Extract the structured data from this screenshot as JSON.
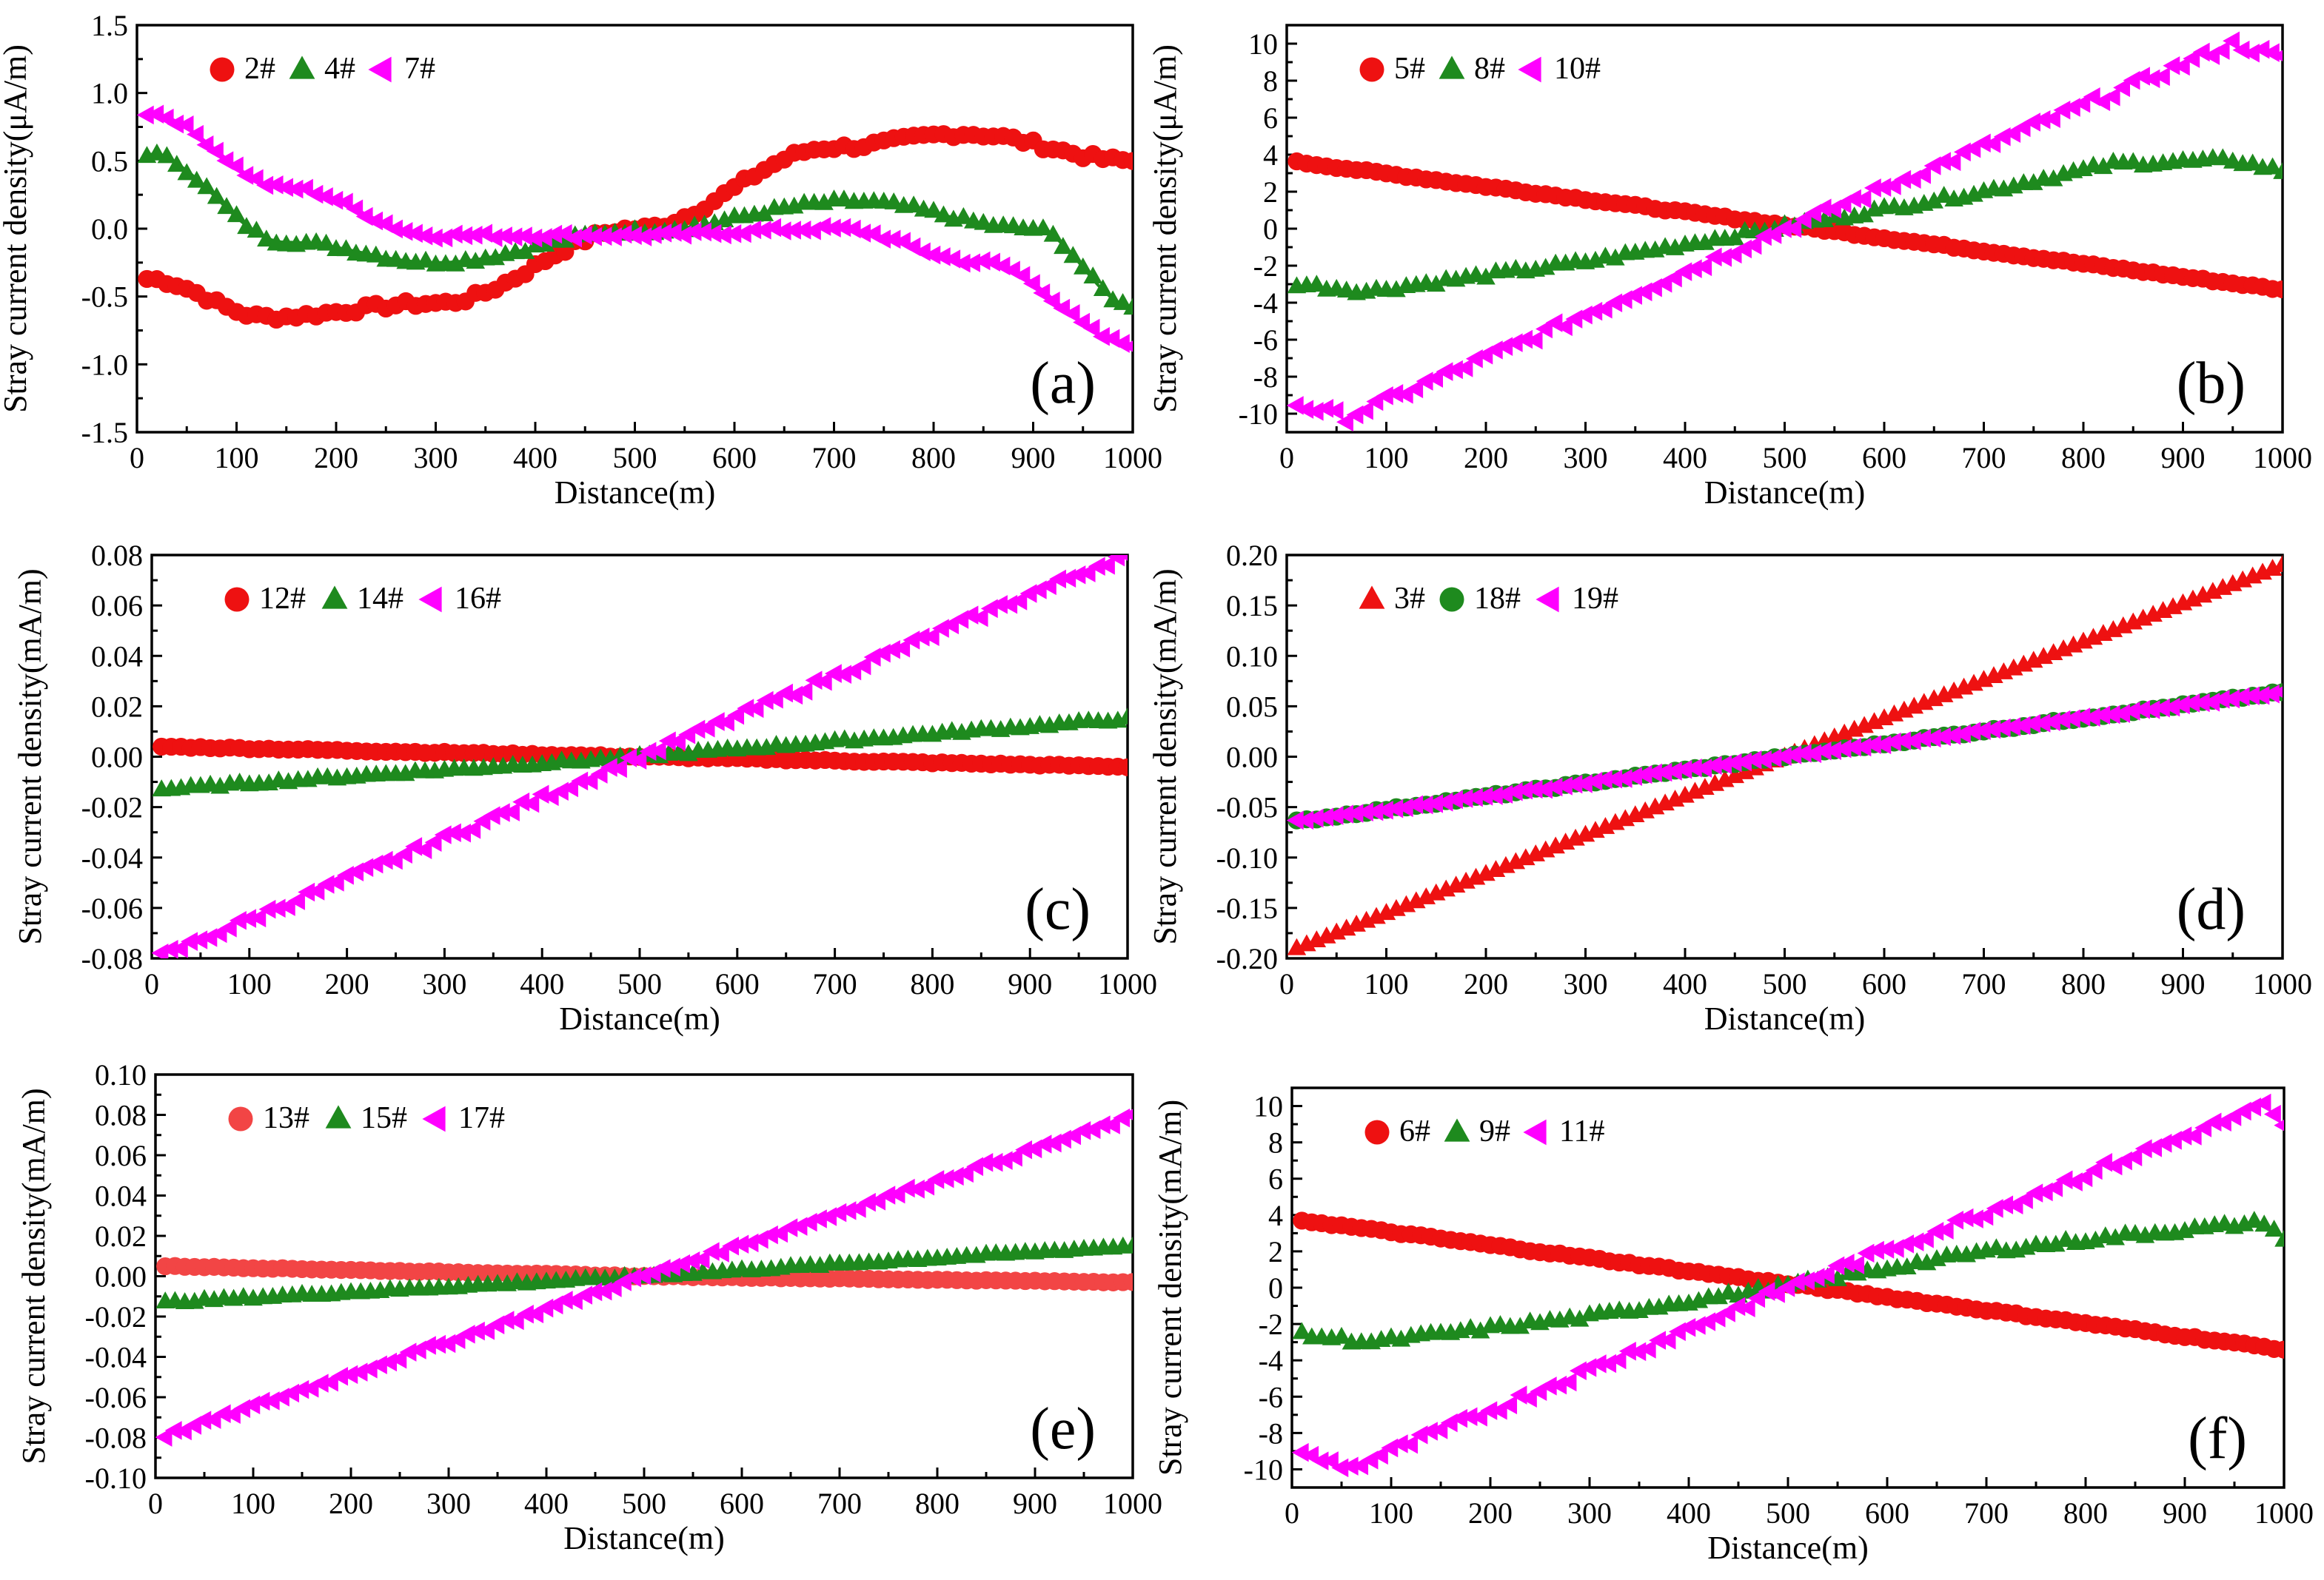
{
  "figure": {
    "x_label": "Distance(m)",
    "x_ticks": [
      "0",
      "100",
      "200",
      "300",
      "400",
      "500",
      "600",
      "700",
      "800",
      "900",
      "1000"
    ]
  },
  "colors": {
    "red": "#ee1111",
    "light_red": "#f24545",
    "green": "#1e8a1e",
    "magenta": "#ff00ff",
    "axis": "#000000"
  },
  "chart_data": [
    {
      "type": "scatter",
      "panel": "(a)",
      "ylabel": "Stray current density(μA/m)",
      "xlabel": "Distance(m)",
      "xlim": [
        0,
        1000
      ],
      "ylim": [
        -1.5,
        1.5
      ],
      "y_ticks": [
        "1.5",
        "1.0",
        "0.5",
        "0.0",
        "-0.5",
        "-1.0",
        "-1.5"
      ],
      "legend_position": "top-left",
      "fit_curves": true,
      "series": [
        {
          "name": "2#",
          "marker": "circle",
          "color": "#ee1111",
          "noise": 0.025,
          "points": [
            [
              10,
              -0.37
            ],
            [
              130,
              -0.65
            ],
            [
              300,
              -0.55
            ],
            [
              500,
              0.0
            ],
            [
              700,
              0.6
            ],
            [
              830,
              0.7
            ],
            [
              1000,
              0.5
            ]
          ]
        },
        {
          "name": "4#",
          "marker": "triangle",
          "color": "#1e8a1e",
          "noise": 0.02,
          "points": [
            [
              10,
              0.55
            ],
            [
              150,
              -0.1
            ],
            [
              300,
              -0.25
            ],
            [
              500,
              -0.02
            ],
            [
              720,
              0.2
            ],
            [
              900,
              0.0
            ],
            [
              1000,
              -0.57
            ]
          ]
        },
        {
          "name": "7#",
          "marker": "triangle-left",
          "color": "#ff00ff",
          "noise": 0.02,
          "points": [
            [
              10,
              0.85
            ],
            [
              150,
              0.3
            ],
            [
              300,
              -0.05
            ],
            [
              500,
              -0.05
            ],
            [
              700,
              0.0
            ],
            [
              850,
              -0.25
            ],
            [
              1000,
              -0.85
            ]
          ]
        }
      ]
    },
    {
      "type": "scatter",
      "panel": "(b)",
      "ylabel": "Stray current density(μA/m)",
      "xlabel": "Distance(m)",
      "xlim": [
        0,
        1000
      ],
      "ylim": [
        -11,
        11
      ],
      "y_ticks": [
        "10",
        "8",
        "6",
        "4",
        "2",
        "0",
        "-2",
        "-4",
        "-6",
        "-8",
        "-10"
      ],
      "legend_position": "top-left",
      "fit_curves": false,
      "series": [
        {
          "name": "5#",
          "marker": "circle",
          "color": "#ee1111",
          "noise": 0.05,
          "points": [
            [
              10,
              3.6
            ],
            [
              500,
              0.2
            ],
            [
              1000,
              -3.3
            ]
          ]
        },
        {
          "name": "8#",
          "marker": "triangle",
          "color": "#1e8a1e",
          "noise": 0.15,
          "points": [
            [
              10,
              -3.0
            ],
            [
              80,
              -3.4
            ],
            [
              300,
              -1.8
            ],
            [
              500,
              0.1
            ],
            [
              700,
              2.0
            ],
            [
              830,
              3.5
            ],
            [
              950,
              3.7
            ],
            [
              1000,
              3.1
            ]
          ]
        },
        {
          "name": "10#",
          "marker": "triangle-left",
          "color": "#ff00ff",
          "noise": 0.25,
          "points": [
            [
              10,
              -9.5
            ],
            [
              60,
              -10.2
            ],
            [
              500,
              0.0
            ],
            [
              950,
              10.0
            ],
            [
              1000,
              9.2
            ]
          ]
        }
      ]
    },
    {
      "type": "scatter",
      "panel": "(c)",
      "ylabel": "Stray current density(mA/m)",
      "xlabel": "Distance(m)",
      "xlim": [
        0,
        1000
      ],
      "ylim": [
        -0.08,
        0.08
      ],
      "y_ticks": [
        "0.08",
        "0.06",
        "0.04",
        "0.02",
        "0.00",
        "-0.02",
        "-0.04",
        "-0.06",
        "-0.08"
      ],
      "legend_position": "top-left",
      "fit_curves": false,
      "series": [
        {
          "name": "12#",
          "marker": "circle",
          "color": "#ee1111",
          "noise": 0.0003,
          "points": [
            [
              10,
              0.004
            ],
            [
              500,
              0.0
            ],
            [
              1000,
              -0.004
            ]
          ]
        },
        {
          "name": "14#",
          "marker": "triangle",
          "color": "#1e8a1e",
          "noise": 0.0006,
          "points": [
            [
              10,
              -0.013
            ],
            [
              500,
              0.0
            ],
            [
              1000,
              0.015
            ]
          ]
        },
        {
          "name": "16#",
          "marker": "triangle-left",
          "color": "#ff00ff",
          "noise": 0.0015,
          "points": [
            [
              10,
              -0.079
            ],
            [
              500,
              0.0
            ],
            [
              990,
              0.079
            ]
          ]
        }
      ]
    },
    {
      "type": "scatter",
      "panel": "(d)",
      "ylabel": "Stray current density(mA/m)",
      "xlabel": "Distance(m)",
      "xlim": [
        0,
        1000
      ],
      "ylim": [
        -0.2,
        0.2
      ],
      "y_ticks": [
        "0.20",
        "0.15",
        "0.10",
        "0.05",
        "0.00",
        "-0.05",
        "-0.10",
        "-0.15",
        "-0.20"
      ],
      "legend_position": "top-left",
      "fit_curves": false,
      "series": [
        {
          "name": "3#",
          "marker": "triangle",
          "color": "#ee1111",
          "noise": 0.0,
          "points": [
            [
              10,
              -0.19
            ],
            [
              500,
              0.0
            ],
            [
              1000,
              0.19
            ]
          ]
        },
        {
          "name": "18#",
          "marker": "circle",
          "color": "#1e8a1e",
          "noise": 0.001,
          "points": [
            [
              10,
              -0.064
            ],
            [
              500,
              0.0
            ],
            [
              1000,
              0.064
            ]
          ]
        },
        {
          "name": "19#",
          "marker": "triangle-left",
          "color": "#ff00ff",
          "noise": 0.001,
          "points": [
            [
              10,
              -0.064
            ],
            [
              500,
              0.0
            ],
            [
              1000,
              0.064
            ]
          ]
        }
      ]
    },
    {
      "type": "scatter",
      "panel": "(e)",
      "ylabel": "Stray current density(mA/m)",
      "xlabel": "Distance(m)",
      "xlim": [
        0,
        1000
      ],
      "ylim": [
        -0.1,
        0.1
      ],
      "y_ticks": [
        "0.10",
        "0.08",
        "0.06",
        "0.04",
        "0.02",
        "0.00",
        "-0.02",
        "-0.04",
        "-0.06",
        "-0.08",
        "-0.10"
      ],
      "legend_position": "top-left",
      "fit_curves": false,
      "series": [
        {
          "name": "13#",
          "marker": "circle",
          "color": "#f24545",
          "noise": 0.0002,
          "points": [
            [
              10,
              0.005
            ],
            [
              500,
              0.0
            ],
            [
              1000,
              -0.003
            ]
          ]
        },
        {
          "name": "15#",
          "marker": "triangle",
          "color": "#1e8a1e",
          "noise": 0.0006,
          "points": [
            [
              10,
              -0.013
            ],
            [
              500,
              0.0
            ],
            [
              1000,
              0.015
            ]
          ]
        },
        {
          "name": "17#",
          "marker": "triangle-left",
          "color": "#ff00ff",
          "noise": 0.0012,
          "points": [
            [
              10,
              -0.079
            ],
            [
              500,
              0.0
            ],
            [
              1000,
              0.079
            ]
          ]
        }
      ]
    },
    {
      "type": "scatter",
      "panel": "(f)",
      "ylabel": "Stray current density(mA/m)",
      "xlabel": "Distance(m)",
      "xlim": [
        0,
        1000
      ],
      "ylim": [
        -11,
        11
      ],
      "y_ticks": [
        "10",
        "8",
        "6",
        "4",
        "2",
        "0",
        "-2",
        "-4",
        "-6",
        "-8",
        "-10"
      ],
      "legend_position": "top-left",
      "fit_curves": false,
      "series": [
        {
          "name": "6#",
          "marker": "circle",
          "color": "#ee1111",
          "noise": 0.05,
          "points": [
            [
              10,
              3.7
            ],
            [
              500,
              0.2
            ],
            [
              1000,
              -3.4
            ]
          ]
        },
        {
          "name": "9#",
          "marker": "triangle",
          "color": "#1e8a1e",
          "noise": 0.15,
          "points": [
            [
              10,
              -2.6
            ],
            [
              80,
              -3.0
            ],
            [
              300,
              -1.6
            ],
            [
              500,
              0.1
            ],
            [
              700,
              2.0
            ],
            [
              830,
              2.8
            ],
            [
              980,
              3.6
            ],
            [
              1000,
              2.7
            ]
          ]
        },
        {
          "name": "11#",
          "marker": "triangle-left",
          "color": "#ff00ff",
          "noise": 0.25,
          "points": [
            [
              10,
              -9.2
            ],
            [
              60,
              -9.9
            ],
            [
              500,
              0.0
            ],
            [
              980,
              10.0
            ],
            [
              1000,
              8.8
            ]
          ]
        }
      ]
    }
  ]
}
